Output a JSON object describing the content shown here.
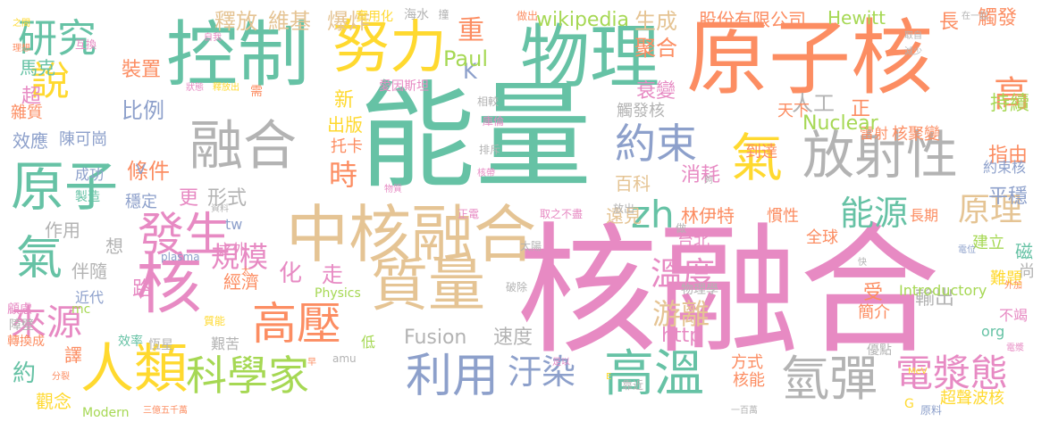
{
  "colors": {
    "pink": "#e78ac3",
    "green": "#66c2a5",
    "orange": "#fc8d62",
    "blue": "#8da0cb",
    "lime": "#a6d854",
    "yellow": "#ffd92f",
    "tan": "#e5c494",
    "gray": "#b3b3b3",
    "background": "#ffffff"
  },
  "words": [
    {
      "text": "核融合",
      "color": "pink"
    },
    {
      "text": "能量",
      "color": "green"
    },
    {
      "text": "原子核",
      "color": "orange"
    },
    {
      "text": "中核融合",
      "color": "tan"
    },
    {
      "text": "控制",
      "color": "green"
    },
    {
      "text": "物理",
      "color": "green"
    },
    {
      "text": "努力",
      "color": "yellow"
    },
    {
      "text": "融合",
      "color": "gray"
    },
    {
      "text": "質量",
      "color": "tan"
    },
    {
      "text": "核",
      "color": "pink"
    },
    {
      "text": "放射性",
      "color": "gray"
    },
    {
      "text": "原子",
      "color": "green"
    },
    {
      "text": "發生",
      "color": "pink"
    },
    {
      "text": "研究",
      "color": "green"
    },
    {
      "text": "說",
      "color": "yellow"
    },
    {
      "text": "人類",
      "color": "yellow"
    },
    {
      "text": "科學家",
      "color": "lime"
    },
    {
      "text": "利用",
      "color": "blue"
    },
    {
      "text": "高壓",
      "color": "orange"
    },
    {
      "text": "高溫",
      "color": "green"
    },
    {
      "text": "氫彈",
      "color": "gray"
    },
    {
      "text": "電漿態",
      "color": "pink"
    },
    {
      "text": "氣",
      "color": "yellow"
    },
    {
      "text": "氣",
      "color": "green"
    },
    {
      "text": "約束",
      "color": "blue"
    },
    {
      "text": "zh",
      "color": "green"
    },
    {
      "text": "能源",
      "color": "green"
    },
    {
      "text": "原理",
      "color": "tan"
    },
    {
      "text": "來源",
      "color": "pink"
    },
    {
      "text": "汙染",
      "color": "blue"
    },
    {
      "text": "溫度",
      "color": "pink"
    },
    {
      "text": "游離",
      "color": "tan"
    },
    {
      "text": "時",
      "color": "orange"
    },
    {
      "text": "規模",
      "color": "pink"
    },
    {
      "text": "高",
      "color": "orange"
    },
    {
      "text": "重",
      "color": "orange"
    },
    {
      "text": "K",
      "color": "blue"
    },
    {
      "text": "Paul",
      "color": "lime"
    },
    {
      "text": "釋放",
      "color": "tan"
    },
    {
      "text": "維基",
      "color": "tan"
    },
    {
      "text": "爆炸",
      "color": "tan"
    },
    {
      "text": "生成",
      "color": "tan"
    },
    {
      "text": "聚合",
      "color": "orange"
    },
    {
      "text": "wikipedia",
      "color": "lime"
    },
    {
      "text": "股份有限公司",
      "color": "orange"
    },
    {
      "text": "Hewitt",
      "color": "lime"
    },
    {
      "text": "長",
      "color": "orange"
    },
    {
      "text": "觸發",
      "color": "orange"
    },
    {
      "text": "人工",
      "color": "gray"
    },
    {
      "text": "衰變",
      "color": "pink"
    },
    {
      "text": "觸發核",
      "color": "gray"
    },
    {
      "text": "天下",
      "color": "orange"
    },
    {
      "text": "正",
      "color": "orange"
    },
    {
      "text": "持續",
      "color": "lime"
    },
    {
      "text": "雷射",
      "color": "orange"
    },
    {
      "text": "核聚變",
      "color": "orange"
    },
    {
      "text": "到達",
      "color": "orange"
    },
    {
      "text": "Nuclear",
      "color": "lime"
    },
    {
      "text": "指由",
      "color": "orange"
    },
    {
      "text": "約束核",
      "color": "blue"
    },
    {
      "text": "平穩",
      "color": "blue"
    },
    {
      "text": "條件",
      "color": "orange"
    },
    {
      "text": "比例",
      "color": "blue"
    },
    {
      "text": "超",
      "color": "pink"
    },
    {
      "text": "馬克",
      "color": "green"
    },
    {
      "text": "雜質",
      "color": "orange"
    },
    {
      "text": "效應",
      "color": "blue"
    },
    {
      "text": "陳可崗",
      "color": "blue"
    },
    {
      "text": "裝置",
      "color": "orange"
    },
    {
      "text": "新",
      "color": "yellow"
    },
    {
      "text": "出版",
      "color": "yellow"
    },
    {
      "text": "托卡",
      "color": "orange"
    },
    {
      "text": "成功",
      "color": "blue"
    },
    {
      "text": "製造",
      "color": "green"
    },
    {
      "text": "穩定",
      "color": "blue"
    },
    {
      "text": "更",
      "color": "pink"
    },
    {
      "text": "形式",
      "color": "gray"
    },
    {
      "text": "消耗",
      "color": "pink"
    },
    {
      "text": "百科",
      "color": "tan"
    },
    {
      "text": "林伊特",
      "color": "orange"
    },
    {
      "text": "慣性",
      "color": "orange"
    },
    {
      "text": "長期",
      "color": "orange"
    },
    {
      "text": "作用",
      "color": "gray"
    },
    {
      "text": "想",
      "color": "gray"
    },
    {
      "text": "伴隨",
      "color": "gray"
    },
    {
      "text": "之外",
      "color": "pink"
    },
    {
      "text": "tw",
      "color": "blue"
    },
    {
      "text": "化",
      "color": "pink"
    },
    {
      "text": "走",
      "color": "pink"
    },
    {
      "text": "路",
      "color": "pink"
    },
    {
      "text": "經濟",
      "color": "orange"
    },
    {
      "text": "遠見",
      "color": "tan"
    },
    {
      "text": "台北",
      "color": "pink"
    },
    {
      "text": "全球",
      "color": "orange"
    },
    {
      "text": "建立",
      "color": "lime"
    },
    {
      "text": "磁",
      "color": "green"
    },
    {
      "text": "尚",
      "color": "gray"
    },
    {
      "text": "受",
      "color": "orange"
    },
    {
      "text": "簡介",
      "color": "orange"
    },
    {
      "text": "輸出",
      "color": "gray"
    },
    {
      "text": "難題",
      "color": "yellow"
    },
    {
      "text": "不竭",
      "color": "pink"
    },
    {
      "text": "org",
      "color": "green"
    },
    {
      "text": "Introductory",
      "color": "lime"
    },
    {
      "text": "Fusion",
      "color": "gray"
    },
    {
      "text": "速度",
      "color": "gray"
    },
    {
      "text": "http",
      "color": "pink"
    },
    {
      "text": "方式",
      "color": "orange"
    },
    {
      "text": "核能",
      "color": "orange"
    },
    {
      "text": "超聲波核",
      "color": "yellow"
    },
    {
      "text": "G",
      "color": "yellow"
    },
    {
      "text": "原料",
      "color": "blue"
    },
    {
      "text": "優點",
      "color": "gray"
    },
    {
      "text": "約",
      "color": "green"
    },
    {
      "text": "譯",
      "color": "orange"
    },
    {
      "text": "觀念",
      "color": "yellow"
    },
    {
      "text": "艱苦",
      "color": "gray"
    },
    {
      "text": "低",
      "color": "lime"
    },
    {
      "text": "效率",
      "color": "green"
    },
    {
      "text": "恆星",
      "color": "gray"
    },
    {
      "text": "近代",
      "color": "blue"
    },
    {
      "text": "mc",
      "color": "lime"
    },
    {
      "text": "轉換成",
      "color": "orange"
    },
    {
      "text": "障壁",
      "color": "gray"
    },
    {
      "text": "顧慮",
      "color": "pink"
    },
    {
      "text": "Physics",
      "color": "lime"
    },
    {
      "text": "物理學",
      "color": "gray"
    },
    {
      "text": "實用化",
      "color": "yellow"
    },
    {
      "text": "海水",
      "color": "gray"
    },
    {
      "text": "做出",
      "color": "orange"
    },
    {
      "text": "愛因斯坦",
      "color": "pink"
    },
    {
      "text": "相較",
      "color": "gray"
    },
    {
      "text": "撞",
      "color": "gray"
    },
    {
      "text": "庫倫",
      "color": "pink"
    },
    {
      "text": "排斥",
      "color": "gray"
    },
    {
      "text": "太陽",
      "color": "gray"
    },
    {
      "text": "破除",
      "color": "gray"
    },
    {
      "text": "正電",
      "color": "pink"
    },
    {
      "text": "取之不盡",
      "color": "pink"
    },
    {
      "text": "放出",
      "color": "gray"
    },
    {
      "text": "做",
      "color": "gray"
    },
    {
      "text": "靠近",
      "color": "gray"
    },
    {
      "text": "之間",
      "color": "yellow"
    },
    {
      "text": "互換",
      "color": "pink"
    },
    {
      "text": "理想",
      "color": "orange"
    },
    {
      "text": "自我",
      "color": "pink"
    },
    {
      "text": "狀態",
      "color": "pink"
    },
    {
      "text": "釋放出",
      "color": "yellow"
    },
    {
      "text": "需",
      "color": "orange"
    },
    {
      "text": "在一起",
      "color": "gray"
    },
    {
      "text": "取自",
      "color": "gray"
    },
    {
      "text": "減少",
      "color": "gray"
    },
    {
      "text": "V",
      "color": "blue"
    },
    {
      "text": "資料",
      "color": "gray"
    },
    {
      "text": "物質",
      "color": "pink"
    },
    {
      "text": "核帶",
      "color": "pink"
    },
    {
      "text": "夠",
      "color": "gray"
    },
    {
      "text": "質能",
      "color": "yellow"
    },
    {
      "text": "plasma",
      "color": "blue"
    },
    {
      "text": "太",
      "color": "orange"
    },
    {
      "text": "分裂",
      "color": "orange"
    },
    {
      "text": "amu",
      "color": "gray"
    },
    {
      "text": "早",
      "color": "orange"
    },
    {
      "text": "足以",
      "color": "pink"
    },
    {
      "text": "E",
      "color": "yellow"
    },
    {
      "text": "Modern",
      "color": "lime"
    },
    {
      "text": "三億五千萬",
      "color": "orange"
    },
    {
      "text": "一百萬",
      "color": "gray"
    },
    {
      "text": "MeV",
      "color": "yellow"
    },
    {
      "text": "電位",
      "color": "blue"
    },
    {
      "text": "外加",
      "color": "orange"
    },
    {
      "text": "電漿",
      "color": "pink"
    },
    {
      "text": "快",
      "color": "gray"
    }
  ]
}
